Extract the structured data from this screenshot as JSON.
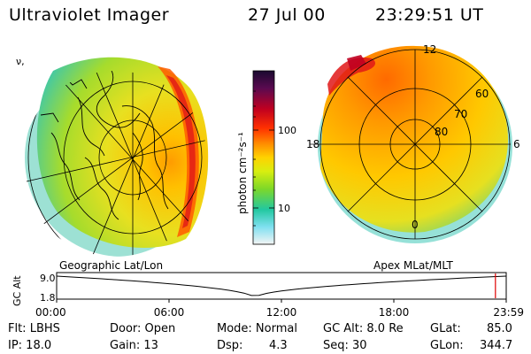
{
  "header": {
    "title": "Ultraviolet Imager",
    "date": "27 Jul 00",
    "time": "23:29:51 UT"
  },
  "left_panel": {
    "label": "Geographic Lat/Lon",
    "corner_mark": "ν,"
  },
  "right_panel": {
    "label": "Apex MLat/MLT",
    "mlt_labels": [
      "12",
      "18",
      "6",
      "0"
    ],
    "lat_labels": [
      "60",
      "70",
      "80"
    ]
  },
  "colorbar": {
    "unit_label": "photon cm⁻²s⁻¹",
    "ticks": [
      "100",
      "10"
    ],
    "colors": [
      "#2a0a3a",
      "#5a0a50",
      "#c00020",
      "#ff3000",
      "#ff8c00",
      "#ffd200",
      "#d8ee10",
      "#7ed828",
      "#22c8a0",
      "#7fe0f0",
      "#c8f0f8",
      "#f4f4f4"
    ]
  },
  "timeline": {
    "ylabel": "GC Alt",
    "y_top": "9.0",
    "y_bottom": "1.8",
    "x_ticks": [
      "00:00",
      "06:00",
      "12:00",
      "18:00",
      "23:59"
    ],
    "current_time_fraction": 0.976
  },
  "info": {
    "flt": "Flt: LBHS",
    "ip": "IP: 18.0",
    "door": "Door: Open",
    "gain": "Gain: 13",
    "mode": "Mode: Normal",
    "dsp_label": "Dsp:",
    "dsp_value": "4.3",
    "gc_alt": "GC Alt: 8.0 Re",
    "seq": "Seq: 30",
    "glat_label": "GLat:",
    "glat_value": "85.0",
    "glon_label": "GLon:",
    "glon_value": "344.7"
  }
}
